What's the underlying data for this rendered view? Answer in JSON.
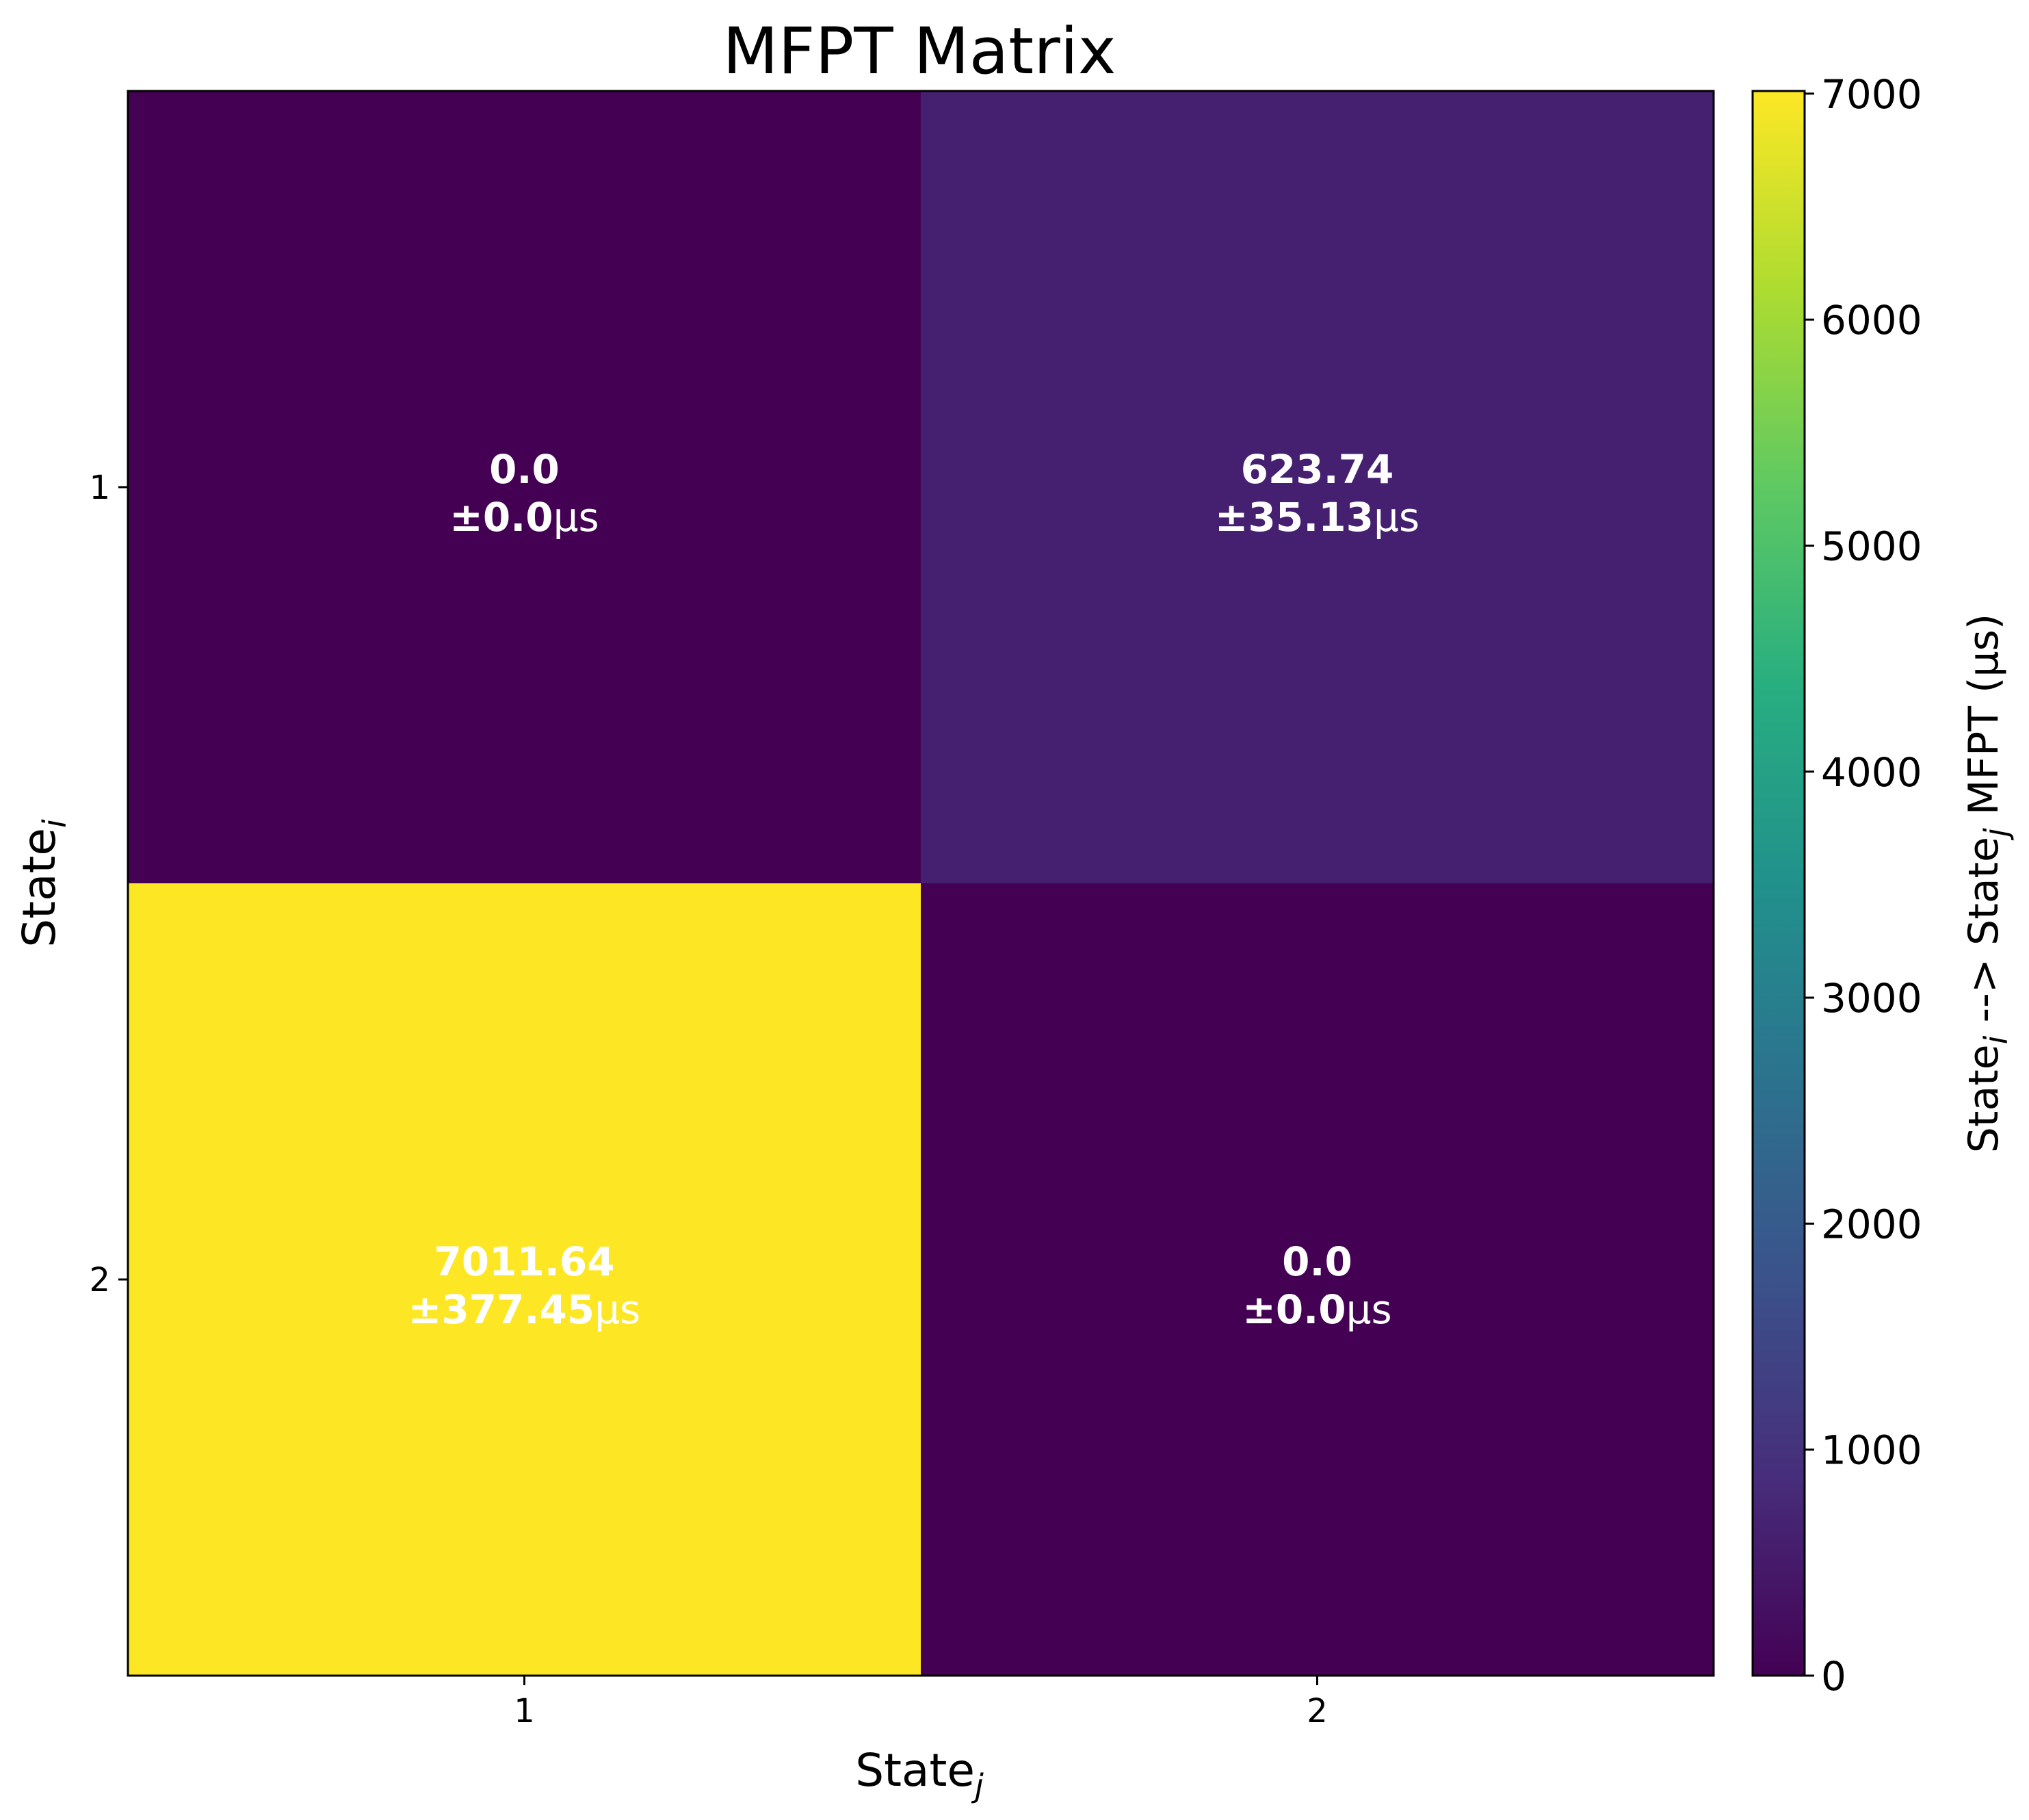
{
  "chart_data": {
    "type": "heatmap",
    "title": "MFPT Matrix",
    "xlabel": {
      "base": "State",
      "subscript": "j"
    },
    "ylabel": {
      "base": "State",
      "subscript": "i"
    },
    "x_categories": [
      "1",
      "2"
    ],
    "y_categories": [
      "1",
      "2"
    ],
    "values": [
      [
        0.0,
        623.74
      ],
      [
        7011.64,
        0.0
      ]
    ],
    "errors": [
      [
        0.0,
        35.13
      ],
      [
        377.45,
        0.0
      ]
    ],
    "cell_labels": [
      [
        {
          "value": "0.0",
          "error": "±0.0",
          "unit": "μs"
        },
        {
          "value": "623.74",
          "error": "±35.13",
          "unit": "μs"
        }
      ],
      [
        {
          "value": "7011.64",
          "error": "±377.45",
          "unit": "μs"
        },
        {
          "value": "0.0",
          "error": "±0.0",
          "unit": "μs"
        }
      ]
    ],
    "colormap": "viridis",
    "clim": [
      0,
      7011.64
    ],
    "colorbar": {
      "ticks": [
        0,
        1000,
        2000,
        3000,
        4000,
        5000,
        6000,
        7000
      ],
      "tick_labels": [
        "0",
        "1000",
        "2000",
        "3000",
        "4000",
        "5000",
        "6000",
        "7000"
      ],
      "label": {
        "part1": "State",
        "sub1": "i",
        "part2": " --> State",
        "sub2": "j",
        "part3": " MFPT (μs)"
      }
    },
    "grid": false
  }
}
